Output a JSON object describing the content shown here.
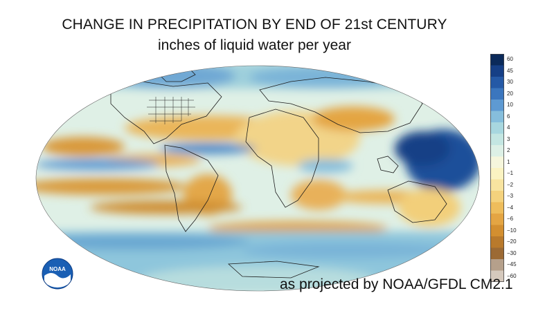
{
  "title_line1": "CHANGE IN PRECIPITATION BY END OF 21st CENTURY",
  "title_line2": "inches of liquid water per year",
  "credit": "as projected by NOAA/GFDL CM2.1",
  "logo_text": "NOAA",
  "legend": {
    "levels": [
      "60",
      "45",
      "30",
      "20",
      "10",
      "6",
      "4",
      "3",
      "2",
      "1",
      "−1",
      "−2",
      "−3",
      "−4",
      "−6",
      "−10",
      "−20",
      "−30",
      "−45",
      "−60"
    ],
    "colors": [
      "#0b2a5a",
      "#163f86",
      "#2559a6",
      "#3b76be",
      "#5e9ad2",
      "#86bedc",
      "#a8d7df",
      "#c4e6e2",
      "#ddf0e6",
      "#f6f6dc",
      "#fbf3c2",
      "#f8e4a0",
      "#f4d27d",
      "#eebd5c",
      "#e4a543",
      "#d38f30",
      "#b97a2c",
      "#9c6a34",
      "#b5a08b",
      "#d5c9bd"
    ]
  }
}
